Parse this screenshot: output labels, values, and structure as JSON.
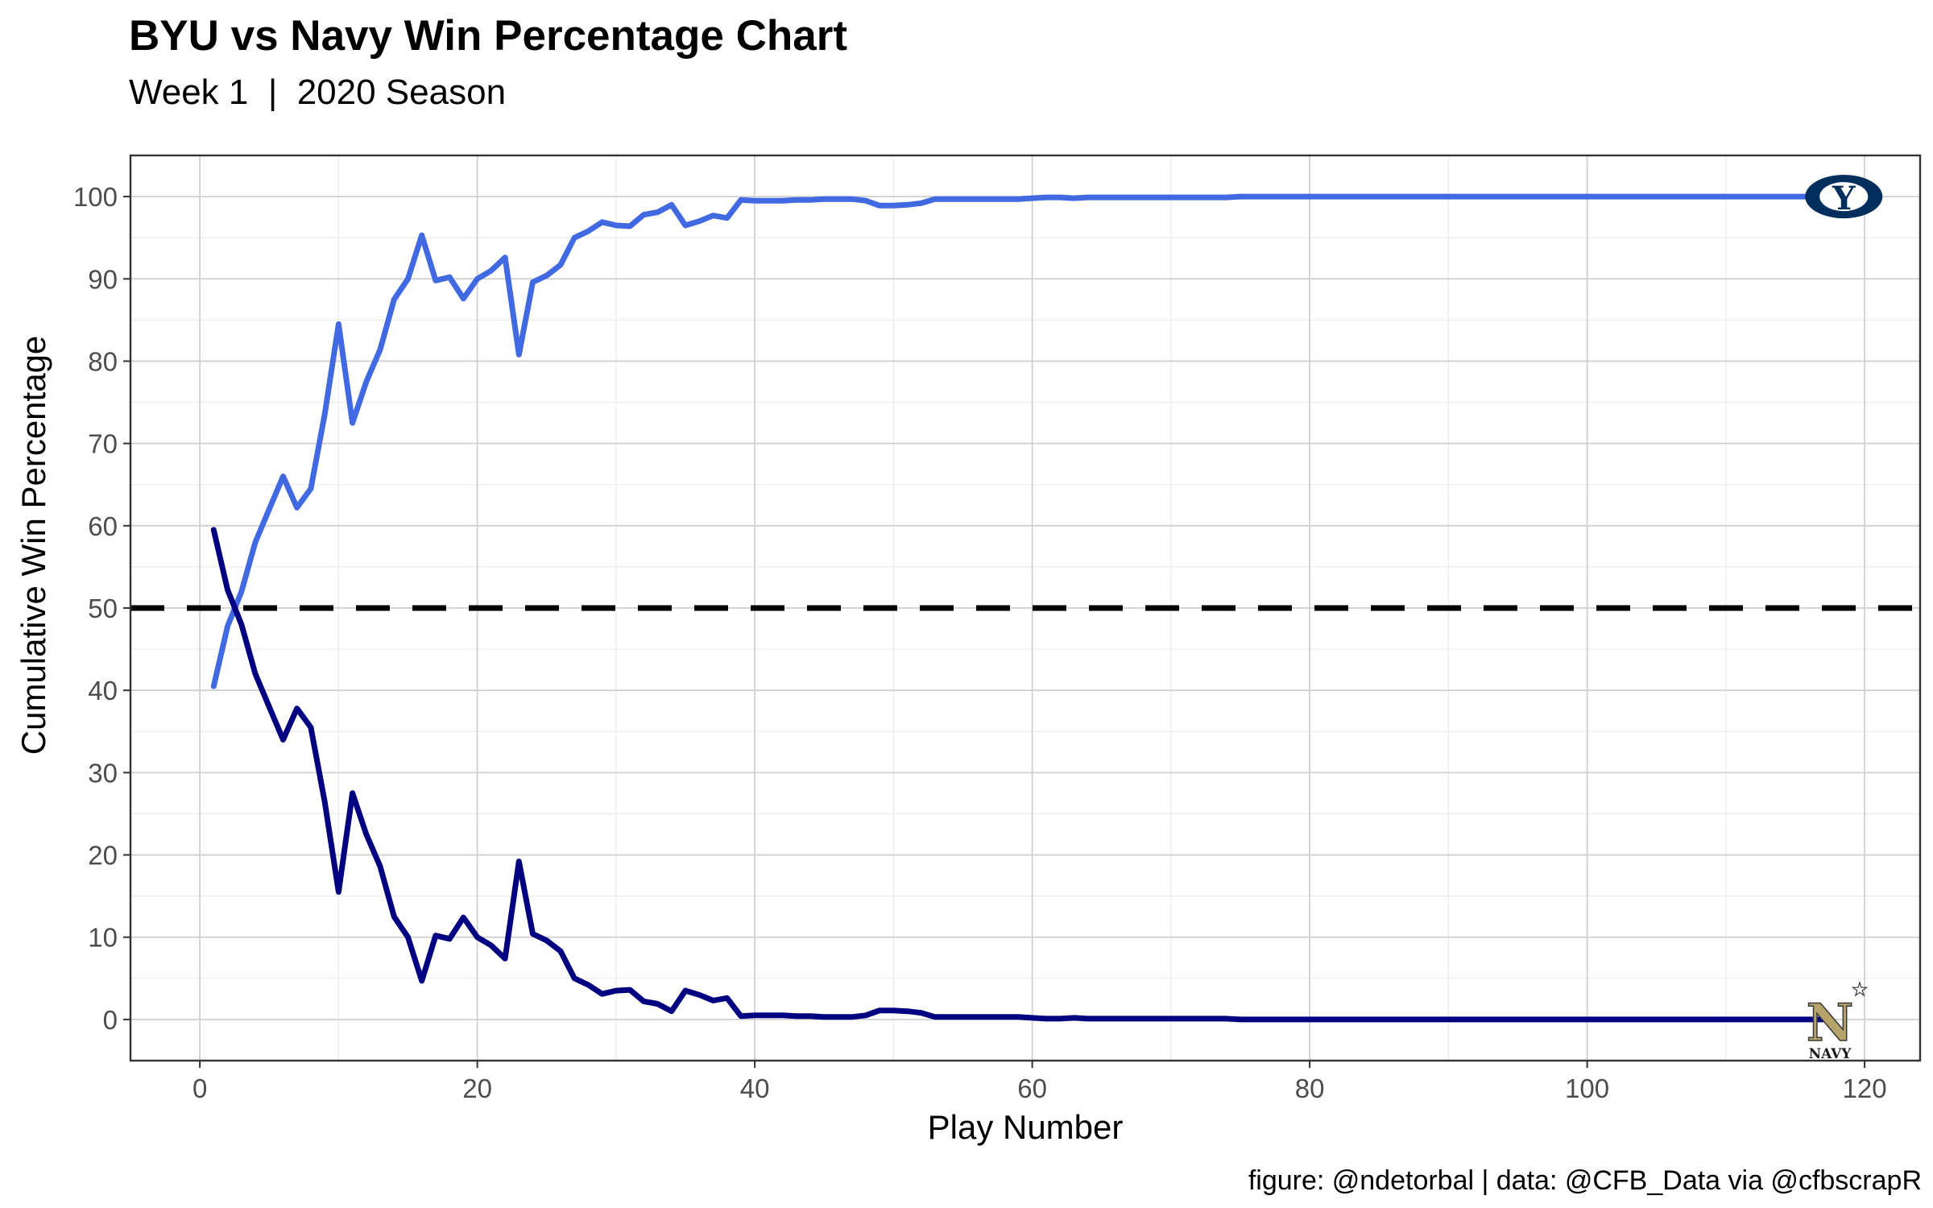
{
  "title": "BYU vs Navy Win Percentage Chart",
  "subtitle": "Week 1  |  2020 Season",
  "caption": "figure: @ndetorbal | data: @CFB_Data via @cfbscrapR",
  "logos": {
    "byu": {
      "name": "byu-logo",
      "letter": "Y",
      "color": "#002E5D"
    },
    "navy": {
      "name": "navy-logo",
      "letter": "N",
      "text": "NAVY",
      "color": "#B5A36A"
    }
  },
  "chart_data": {
    "type": "line",
    "xlabel": "Play Number",
    "ylabel": "Cumulative Win Percentage",
    "xlim": [
      -5,
      124
    ],
    "ylim": [
      -5,
      105
    ],
    "x_ticks": [
      0,
      20,
      40,
      60,
      80,
      100,
      120
    ],
    "y_ticks": [
      0,
      10,
      20,
      30,
      40,
      50,
      60,
      70,
      80,
      90,
      100
    ],
    "grid": true,
    "reference_line": {
      "y": 50,
      "style": "dashed",
      "color": "#000000"
    },
    "series": [
      {
        "name": "BYU",
        "color": "#4169E1",
        "x": [
          1,
          2,
          3,
          4,
          5,
          6,
          7,
          8,
          9,
          10,
          11,
          12,
          13,
          14,
          15,
          16,
          17,
          18,
          19,
          20,
          21,
          22,
          23,
          24,
          25,
          26,
          27,
          28,
          29,
          30,
          31,
          32,
          33,
          34,
          35,
          36,
          37,
          38,
          39,
          40,
          41,
          42,
          43,
          44,
          45,
          46,
          47,
          48,
          49,
          50,
          51,
          52,
          53,
          54,
          55,
          56,
          57,
          58,
          59,
          60,
          61,
          62,
          63,
          64,
          65,
          66,
          67,
          68,
          69,
          70,
          71,
          72,
          73,
          74,
          75,
          76,
          77,
          78,
          79,
          80,
          81,
          82,
          83,
          84,
          85,
          86,
          87,
          88,
          89,
          90,
          91,
          92,
          93,
          94,
          95,
          96,
          97,
          98,
          99,
          100,
          101,
          102,
          103,
          104,
          105,
          106,
          107,
          108,
          109,
          110,
          111,
          112,
          113,
          114,
          115,
          116,
          117
        ],
        "values": [
          40.5,
          47.8,
          52,
          58,
          62,
          66,
          62.2,
          64.5,
          73.5,
          84.5,
          72.5,
          77.5,
          81.4,
          87.5,
          90,
          95.3,
          89.8,
          90.2,
          87.6,
          90,
          91,
          92.6,
          80.8,
          89.6,
          90.4,
          91.7,
          95,
          95.8,
          96.9,
          96.5,
          96.4,
          97.8,
          98.1,
          99,
          96.5,
          97,
          97.7,
          97.4,
          99.6,
          99.5,
          99.5,
          99.5,
          99.6,
          99.6,
          99.7,
          99.7,
          99.7,
          99.5,
          98.9,
          98.9,
          99,
          99.2,
          99.7,
          99.7,
          99.7,
          99.7,
          99.7,
          99.7,
          99.7,
          99.8,
          99.9,
          99.9,
          99.8,
          99.9,
          99.9,
          99.9,
          99.9,
          99.9,
          99.9,
          99.9,
          99.9,
          99.9,
          99.9,
          99.9,
          100,
          100,
          100,
          100,
          100,
          100,
          100,
          100,
          100,
          100,
          100,
          100,
          100,
          100,
          100,
          100,
          100,
          100,
          100,
          100,
          100,
          100,
          100,
          100,
          100,
          100,
          100,
          100,
          100,
          100,
          100,
          100,
          100,
          100,
          100,
          100,
          100,
          100,
          100,
          100,
          100,
          100,
          100
        ]
      },
      {
        "name": "Navy",
        "color": "#000080",
        "x": [
          1,
          2,
          3,
          4,
          5,
          6,
          7,
          8,
          9,
          10,
          11,
          12,
          13,
          14,
          15,
          16,
          17,
          18,
          19,
          20,
          21,
          22,
          23,
          24,
          25,
          26,
          27,
          28,
          29,
          30,
          31,
          32,
          33,
          34,
          35,
          36,
          37,
          38,
          39,
          40,
          41,
          42,
          43,
          44,
          45,
          46,
          47,
          48,
          49,
          50,
          51,
          52,
          53,
          54,
          55,
          56,
          57,
          58,
          59,
          60,
          61,
          62,
          63,
          64,
          65,
          66,
          67,
          68,
          69,
          70,
          71,
          72,
          73,
          74,
          75,
          76,
          77,
          78,
          79,
          80,
          81,
          82,
          83,
          84,
          85,
          86,
          87,
          88,
          89,
          90,
          91,
          92,
          93,
          94,
          95,
          96,
          97,
          98,
          99,
          100,
          101,
          102,
          103,
          104,
          105,
          106,
          107,
          108,
          109,
          110,
          111,
          112,
          113,
          114,
          115,
          116,
          117
        ],
        "values": [
          59.5,
          52.2,
          48,
          42,
          38,
          34,
          37.8,
          35.5,
          26.5,
          15.5,
          27.5,
          22.5,
          18.6,
          12.5,
          10,
          4.7,
          10.2,
          9.8,
          12.4,
          10,
          9,
          7.4,
          19.2,
          10.4,
          9.6,
          8.3,
          5,
          4.2,
          3.1,
          3.5,
          3.6,
          2.2,
          1.9,
          1,
          3.5,
          3,
          2.3,
          2.6,
          0.4,
          0.5,
          0.5,
          0.5,
          0.4,
          0.4,
          0.3,
          0.3,
          0.3,
          0.5,
          1.1,
          1.1,
          1,
          0.8,
          0.3,
          0.3,
          0.3,
          0.3,
          0.3,
          0.3,
          0.3,
          0.2,
          0.1,
          0.1,
          0.2,
          0.1,
          0.1,
          0.1,
          0.1,
          0.1,
          0.1,
          0.1,
          0.1,
          0.1,
          0.1,
          0.1,
          0,
          0,
          0,
          0,
          0,
          0,
          0,
          0,
          0,
          0,
          0,
          0,
          0,
          0,
          0,
          0,
          0,
          0,
          0,
          0,
          0,
          0,
          0,
          0,
          0,
          0,
          0,
          0,
          0,
          0,
          0,
          0,
          0,
          0,
          0,
          0,
          0,
          0,
          0,
          0,
          0,
          0,
          0
        ]
      }
    ]
  }
}
